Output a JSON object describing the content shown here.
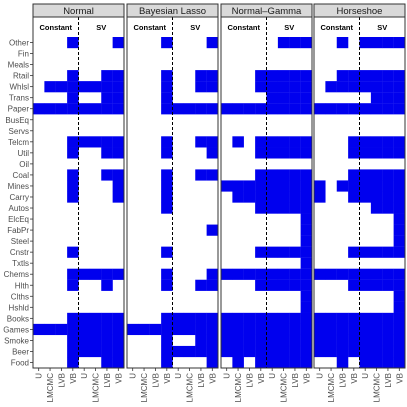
{
  "chart_data": {
    "type": "heatmap",
    "panels": [
      "Normal",
      "Bayesian Lasso",
      "Normal–Gamma",
      "Horseshoe"
    ],
    "groups": [
      "Constant",
      "SV"
    ],
    "columns": [
      "U",
      "LMCMC",
      "LVB",
      "VB",
      "U",
      "LMCMC",
      "LVB",
      "VB"
    ],
    "rows": [
      "Other",
      "Fin",
      "Meals",
      "Rtail",
      "Whlsl",
      "Trans",
      "Paper",
      "BusEq",
      "Servs",
      "Telcm",
      "Util",
      "Oil",
      "Coal",
      "Mines",
      "Carry",
      "Autos",
      "ElcEq",
      "FabPr",
      "Steel",
      "Cnstr",
      "Txtls",
      "Chems",
      "Hlth",
      "Clths",
      "Hshld",
      "Books",
      "Games",
      "Smoke",
      "Beer",
      "Food"
    ],
    "legend": "none",
    "cells": [
      {
        "panel": "Normal",
        "rows": [
          "00010001",
          "00000000",
          "00000000",
          "00010011",
          "01111111",
          "00010011",
          "11111111",
          "00000000",
          "00000000",
          "00011111",
          "00010011",
          "00000000",
          "00010011",
          "00010001",
          "00010001",
          "00000000",
          "00000000",
          "00000000",
          "00000000",
          "00010000",
          "00000000",
          "00011111",
          "00010010",
          "00000000",
          "00000000",
          "00011111",
          "11111111",
          "00011111",
          "00011111",
          "00010011"
        ]
      },
      {
        "panel": "Bayesian Lasso",
        "rows": [
          "00010001",
          "00000000",
          "00000000",
          "00010011",
          "00010011",
          "00010000",
          "00011111",
          "00000000",
          "00000000",
          "00010011",
          "00010001",
          "00000000",
          "00010011",
          "00010000",
          "00010000",
          "00010000",
          "00000000",
          "00000001",
          "00000000",
          "00010000",
          "00000000",
          "00010001",
          "00010011",
          "00000000",
          "00000000",
          "00011111",
          "11111111",
          "00010011",
          "00011111",
          "00010001"
        ]
      },
      {
        "panel": "Normal–Gamma",
        "rows": [
          "00000111",
          "00000000",
          "00000000",
          "00011111",
          "00011111",
          "00001111",
          "11111111",
          "00000000",
          "00000000",
          "01011111",
          "00011111",
          "00000000",
          "00011111",
          "11111111",
          "01111111",
          "00011111",
          "00000001",
          "00000001",
          "00000001",
          "00011111",
          "00000001",
          "11111111",
          "00011111",
          "00000001",
          "00000001",
          "11111111",
          "11111111",
          "11111111",
          "11111111",
          "01011111"
        ]
      },
      {
        "panel": "Horseshoe",
        "rows": [
          "00101111",
          "00000000",
          "00000000",
          "00111111",
          "01111111",
          "00000111",
          "11111111",
          "00000000",
          "00000000",
          "00011111",
          "00011111",
          "00000000",
          "00011111",
          "10111111",
          "10011111",
          "00000111",
          "00000001",
          "00000001",
          "00000001",
          "00011111",
          "00000000",
          "11111111",
          "00011111",
          "00000001",
          "00000001",
          "11111111",
          "11111111",
          "11111111",
          "11111111",
          "00101111"
        ]
      }
    ]
  }
}
